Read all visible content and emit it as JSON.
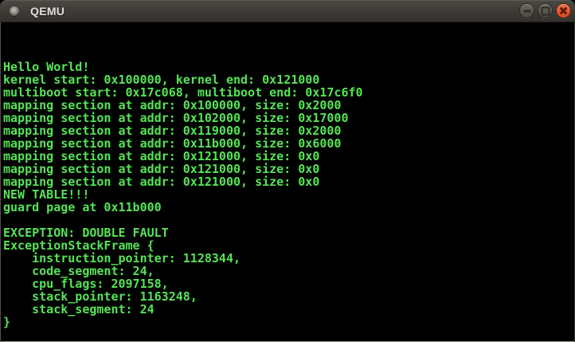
{
  "window": {
    "title": "QEMU",
    "controls": {
      "minimize_label": "minimize",
      "maximize_label": "maximize",
      "close_label": "close"
    }
  },
  "icons": {
    "app_icon": "sphere-dot",
    "minimize_icon": "–",
    "maximize_icon": "□",
    "close_icon": "×"
  },
  "colors": {
    "terminal_green": "#55e555",
    "terminal_bg": "#000000",
    "titlebar_text": "#e3dfda",
    "close_button_orange": "#e4552f",
    "button_gray": "#57544c"
  },
  "terminal": {
    "columns": 80,
    "rows": 25,
    "lines": [
      "",
      "",
      "",
      "Hello World!",
      "kernel start: 0x100000, kernel end: 0x121000",
      "multiboot start: 0x17c068, multiboot end: 0x17c6f0",
      "mapping section at addr: 0x100000, size: 0x2000",
      "mapping section at addr: 0x102000, size: 0x17000",
      "mapping section at addr: 0x119000, size: 0x2000",
      "mapping section at addr: 0x11b000, size: 0x6000",
      "mapping section at addr: 0x121000, size: 0x0",
      "mapping section at addr: 0x121000, size: 0x0",
      "mapping section at addr: 0x121000, size: 0x0",
      "NEW TABLE!!!",
      "guard page at 0x11b000",
      "",
      "EXCEPTION: DOUBLE FAULT",
      "ExceptionStackFrame {",
      "    instruction_pointer: 1128344,",
      "    code_segment: 24,",
      "    cpu_flags: 2097158,",
      "    stack_pointer: 1163248,",
      "    stack_segment: 24",
      "}",
      ""
    ]
  }
}
